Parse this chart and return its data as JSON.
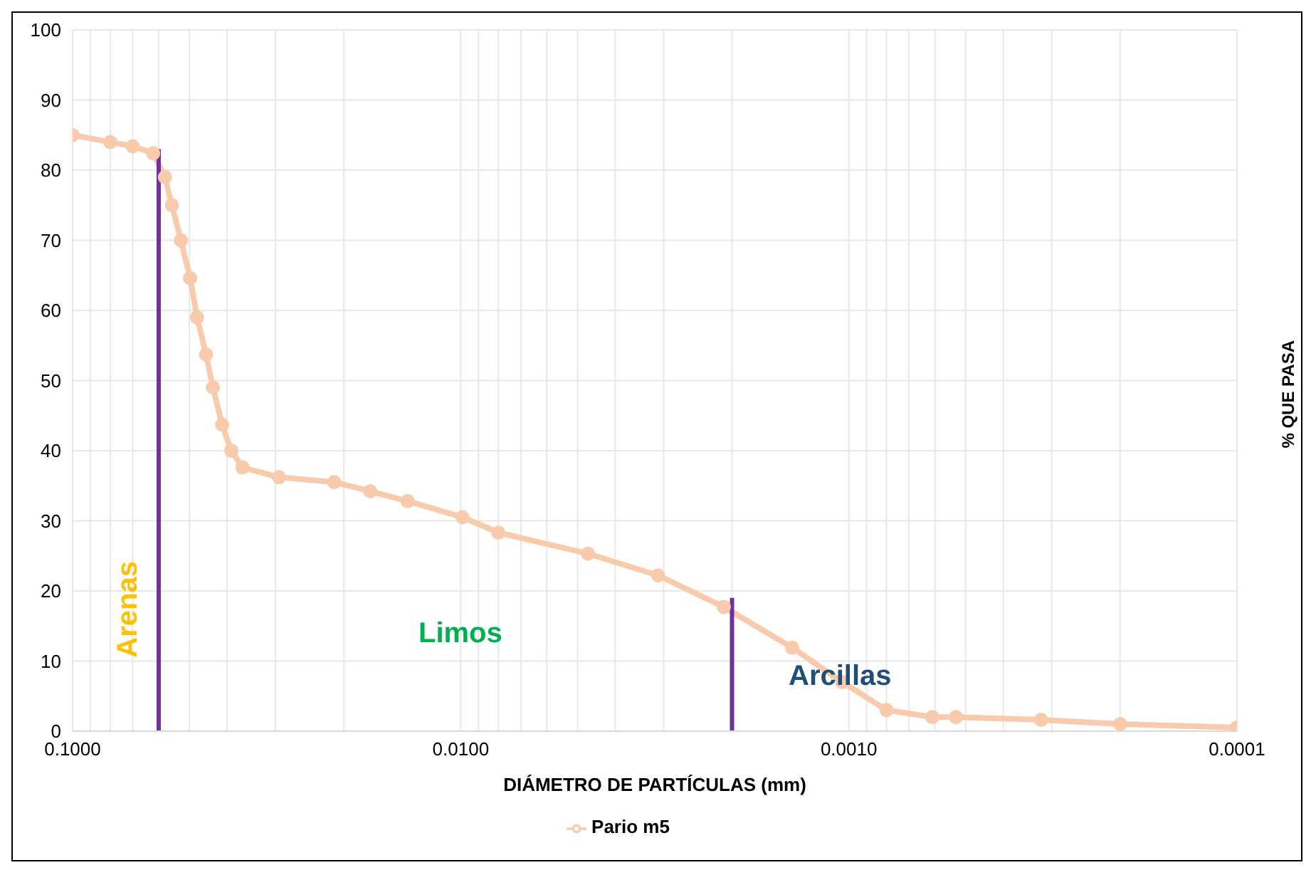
{
  "chart_data": {
    "type": "line",
    "xlabel": "DIÁMETRO DE PARTÍCULAS (mm)",
    "ylabel": "% QUE PASA",
    "log": "x",
    "xlim": [
      0.1,
      0.0001
    ],
    "xticks": [
      {
        "value": 0.1,
        "label": "0.1000"
      },
      {
        "value": 0.09,
        "label": null
      },
      {
        "value": 0.08,
        "label": null
      },
      {
        "value": 0.07,
        "label": null
      },
      {
        "value": 0.06,
        "label": null
      },
      {
        "value": 0.05,
        "label": null
      },
      {
        "value": 0.04,
        "label": null
      },
      {
        "value": 0.03,
        "label": null
      },
      {
        "value": 0.02,
        "label": null
      },
      {
        "value": 0.01,
        "label": "0.0100"
      },
      {
        "value": 0.009,
        "label": null
      },
      {
        "value": 0.008,
        "label": null
      },
      {
        "value": 0.007,
        "label": null
      },
      {
        "value": 0.006,
        "label": null
      },
      {
        "value": 0.005,
        "label": null
      },
      {
        "value": 0.004,
        "label": null
      },
      {
        "value": 0.003,
        "label": null
      },
      {
        "value": 0.002,
        "label": null
      },
      {
        "value": 0.001,
        "label": "0.0010"
      },
      {
        "value": 0.0009,
        "label": null
      },
      {
        "value": 0.0008,
        "label": null
      },
      {
        "value": 0.0007,
        "label": null
      },
      {
        "value": 0.0006,
        "label": null
      },
      {
        "value": 0.0005,
        "label": null
      },
      {
        "value": 0.0004,
        "label": null
      },
      {
        "value": 0.0003,
        "label": null
      },
      {
        "value": 0.0002,
        "label": null
      },
      {
        "value": 0.0001,
        "label": "0.0001"
      }
    ],
    "ylim": [
      0,
      100
    ],
    "yticks": [
      0,
      10,
      20,
      30,
      40,
      50,
      60,
      70,
      80,
      90,
      100
    ],
    "grid": true,
    "legend": "bottom",
    "series": [
      {
        "name": "Pario m5",
        "color": "#f8cbad",
        "marker": "circle",
        "x": [
          0.1,
          0.08,
          0.07,
          0.062,
          0.0578,
          0.0555,
          0.0526,
          0.0498,
          0.0478,
          0.0453,
          0.0435,
          0.0412,
          0.039,
          0.0365,
          0.0294,
          0.0212,
          0.0171,
          0.0137,
          0.0099,
          0.008,
          0.0047,
          0.0031,
          0.0021,
          0.0014,
          0.00104,
          0.0008,
          0.00061,
          0.00053,
          0.00032,
          0.0002,
          0.0001
        ],
        "values": [
          85,
          84,
          83.4,
          82.4,
          79,
          75,
          70,
          64.6,
          59,
          53.7,
          49,
          43.7,
          40,
          37.6,
          36.2,
          35.5,
          34.2,
          32.8,
          30.5,
          28.3,
          25.3,
          22.2,
          17.7,
          11.9,
          7,
          3,
          2,
          2,
          1.6,
          1,
          0.5
        ]
      },
      {
        "color": "#7030a0",
        "marker": "none",
        "x": [
          0.06,
          0.06
        ],
        "values": [
          0,
          83
        ]
      },
      {
        "color": "#7030a0",
        "marker": "none",
        "x": [
          0.002,
          0.002
        ],
        "values": [
          0,
          19
        ]
      }
    ],
    "annotations": [
      "Arenas",
      "Limos",
      "Arcillas"
    ]
  }
}
